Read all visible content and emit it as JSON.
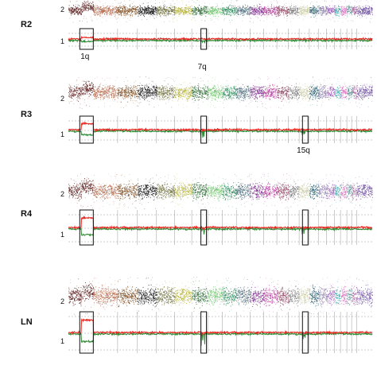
{
  "chart_data": {
    "type": "scatter",
    "description_kind": "segmented copy-number genome plots, one per sample",
    "samples": [
      {
        "label": "R2",
        "allele_ticks": [
          "2",
          "1"
        ],
        "annotations": [
          {
            "text": "1q",
            "chromosome": "1q",
            "direction": "gain",
            "label_position": "below"
          },
          {
            "text": "7q",
            "chromosome": "7q",
            "direction": "loss",
            "label_position": "below"
          }
        ],
        "events": [
          {
            "chromosome": "1q",
            "direction": "gain",
            "magnitude": 0.2
          },
          {
            "chromosome": "7q",
            "direction": "loss",
            "magnitude": 0.5
          }
        ]
      },
      {
        "label": "R3",
        "allele_ticks": [
          "2",
          "1"
        ],
        "annotations": [
          {
            "text": "15q",
            "chromosome": "15q",
            "direction": "loss",
            "label_position": "below"
          }
        ],
        "events": [
          {
            "chromosome": "1q",
            "direction": "gain",
            "magnitude": 0.6
          },
          {
            "chromosome": "7q",
            "direction": "loss",
            "magnitude": 0.5
          },
          {
            "chromosome": "15q",
            "direction": "loss",
            "magnitude": 0.4
          }
        ]
      },
      {
        "label": "R4",
        "allele_ticks": [
          "2",
          "1"
        ],
        "annotations": [],
        "events": [
          {
            "chromosome": "1q",
            "direction": "gain",
            "magnitude": 0.7
          },
          {
            "chromosome": "7q",
            "direction": "loss",
            "magnitude": 0.5
          },
          {
            "chromosome": "15q",
            "direction": "loss",
            "magnitude": 0.45
          }
        ]
      },
      {
        "label": "LN",
        "allele_ticks": [
          "2",
          "1"
        ],
        "annotations": [],
        "events": [
          {
            "chromosome": "1q",
            "direction": "gain",
            "magnitude": 0.75
          },
          {
            "chromosome": "7q",
            "direction": "loss",
            "magnitude": 0.55
          },
          {
            "chromosome": "15q",
            "direction": "loss",
            "magnitude": 0.55
          }
        ]
      }
    ],
    "chromosomes": [
      "1",
      "2",
      "3",
      "4",
      "5",
      "6",
      "7",
      "8",
      "9",
      "10",
      "11",
      "12",
      "13",
      "14",
      "15",
      "16",
      "17",
      "18",
      "19",
      "20",
      "21",
      "22",
      "X"
    ],
    "chromosome_relative_sizes": [
      249,
      243,
      198,
      191,
      181,
      171,
      159,
      146,
      141,
      136,
      135,
      134,
      115,
      107,
      102,
      90,
      83,
      80,
      59,
      63,
      48,
      51,
      155
    ],
    "chromosome_colors": [
      "#5a1a1a",
      "#b4684a",
      "#7a4a1e",
      "#0a0a0a",
      "#6a6a3a",
      "#b6b33c",
      "#2f6a36",
      "#6ec46a",
      "#2a8a5a",
      "#4a6a7a",
      "#7a2a8a",
      "#b83a9e",
      "#8a3a5a",
      "#7a7a7a",
      "#c9c9a0",
      "#1e5a6a",
      "#8a7aa8",
      "#9b5ab8",
      "#3aa8b0",
      "#d860b8",
      "#4a8a8a",
      "#a05a9a",
      "#6a4aa0"
    ],
    "trace_colors": {
      "baf_upper": "#e8231c",
      "baf_lower": "#2e8a34"
    }
  }
}
